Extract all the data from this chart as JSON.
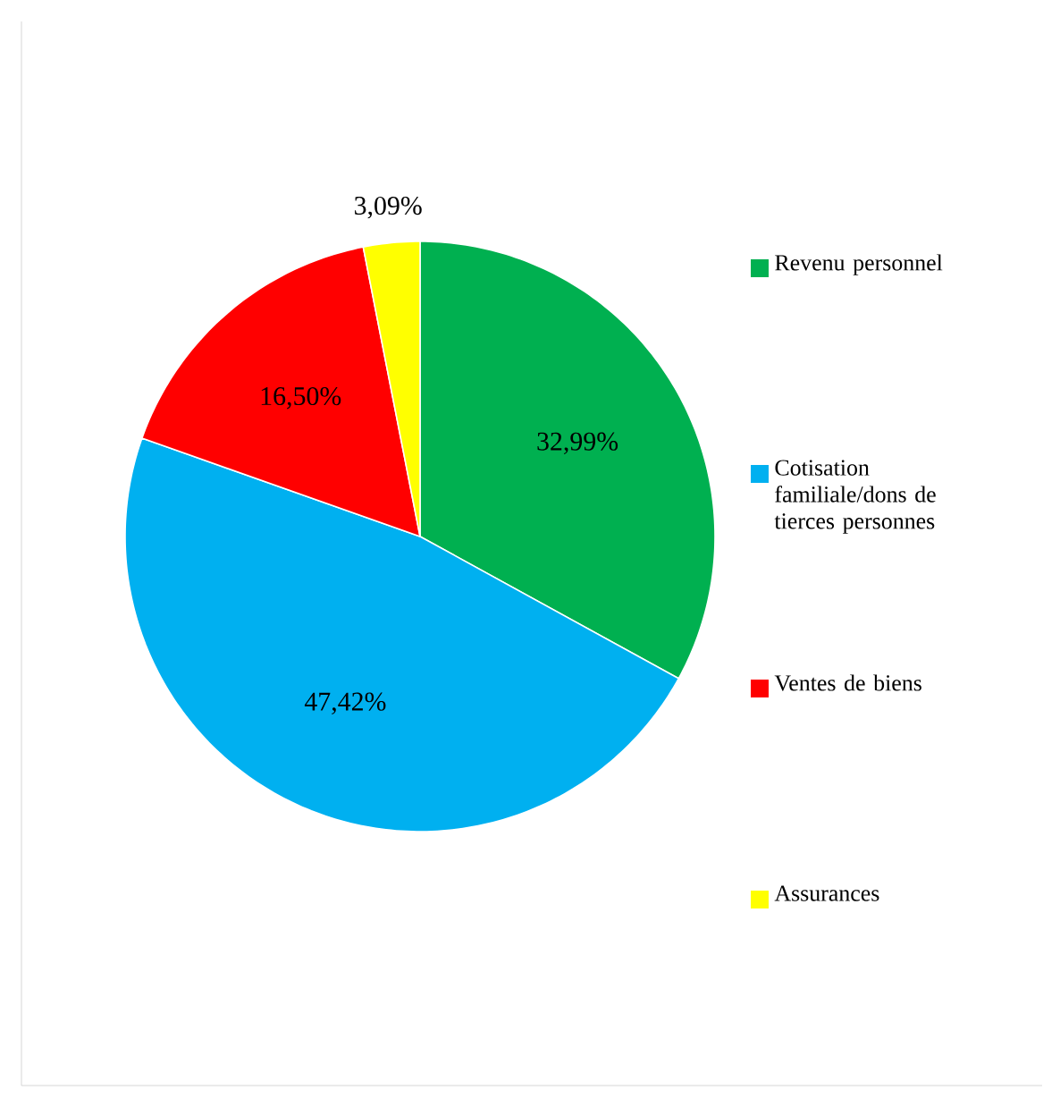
{
  "chart_data": {
    "type": "pie",
    "categories": [
      "Revenu personnel",
      "Cotisation familiale/dons de tierces personnes",
      "Ventes de biens",
      "Assurances"
    ],
    "values": [
      32.99,
      47.42,
      16.5,
      3.09
    ],
    "colors": [
      "#00b050",
      "#00b0f0",
      "#ff0000",
      "#ffff00"
    ],
    "value_labels": [
      "32,99%",
      "47,42%",
      "16,50%",
      "3,09%"
    ],
    "legend": "right"
  }
}
